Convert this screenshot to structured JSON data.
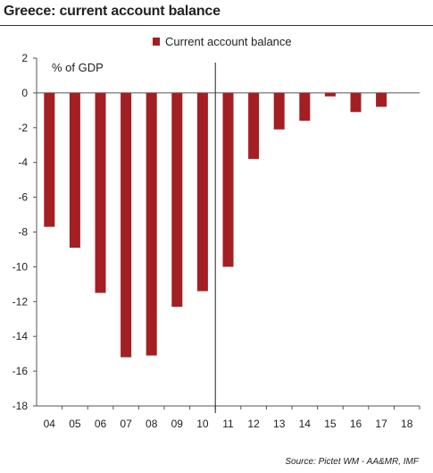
{
  "title": "Greece: current account balance",
  "source": "Source: Pictet WM - AA&MR, IMF",
  "chart_data": {
    "type": "bar",
    "unit_label": "% of GDP",
    "categories": [
      "04",
      "05",
      "06",
      "07",
      "08",
      "09",
      "10",
      "11",
      "12",
      "13",
      "14",
      "15",
      "16",
      "17",
      "18"
    ],
    "series": [
      {
        "name": "Current account balance",
        "color": "#a31f24",
        "values": [
          -7.7,
          -8.9,
          -11.5,
          -15.2,
          -15.1,
          -12.3,
          -11.4,
          -10.0,
          -3.8,
          -2.1,
          -1.6,
          -0.2,
          -1.1,
          -0.8,
          null
        ]
      }
    ],
    "ylim": [
      -18,
      2
    ],
    "yticks": [
      "2",
      "0",
      "-2",
      "-4",
      "-6",
      "-8",
      "-10",
      "-12",
      "-14",
      "-16",
      "-18"
    ],
    "legend_position": "top-center",
    "forecast_divider_after": "10",
    "grid": false
  }
}
